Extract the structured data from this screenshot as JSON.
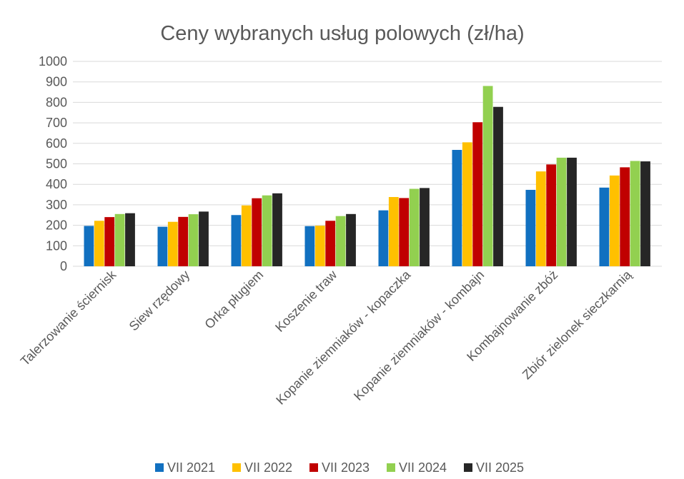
{
  "chart_data": {
    "type": "bar",
    "title": "Ceny wybranych usług polowych (zł/ha)",
    "xlabel": "",
    "ylabel": "",
    "ylim": [
      0,
      1000
    ],
    "y_ticks": [
      "0",
      "100",
      "200",
      "300",
      "400",
      "500",
      "600",
      "700",
      "800",
      "900",
      "1000"
    ],
    "grid": true,
    "legend_position": "bottom",
    "categories": [
      "Talerzowanie ściernisk",
      "Siew rzędowy",
      "Orka pługiem",
      "Koszenie traw",
      "Kopanie ziemniaków - kopaczka",
      "Kopanie ziemniaków - kombajn",
      "Kombajnowanie zbóż",
      "Zbiór zielonek sieczkarnią"
    ],
    "series": [
      {
        "name": "VII 2021",
        "color": "#1170c0",
        "values": [
          197,
          193,
          250,
          196,
          273,
          568,
          373,
          384
        ]
      },
      {
        "name": "VII 2022",
        "color": "#ffc000",
        "values": [
          222,
          217,
          297,
          198,
          338,
          605,
          463,
          443
        ]
      },
      {
        "name": "VII 2023",
        "color": "#c00000",
        "values": [
          240,
          241,
          332,
          222,
          333,
          703,
          497,
          483
        ]
      },
      {
        "name": "VII 2024",
        "color": "#92d050",
        "values": [
          255,
          254,
          346,
          245,
          378,
          880,
          530,
          514
        ]
      },
      {
        "name": "VII 2025",
        "color": "#262626",
        "values": [
          259,
          267,
          356,
          255,
          382,
          778,
          530,
          512
        ]
      }
    ]
  }
}
